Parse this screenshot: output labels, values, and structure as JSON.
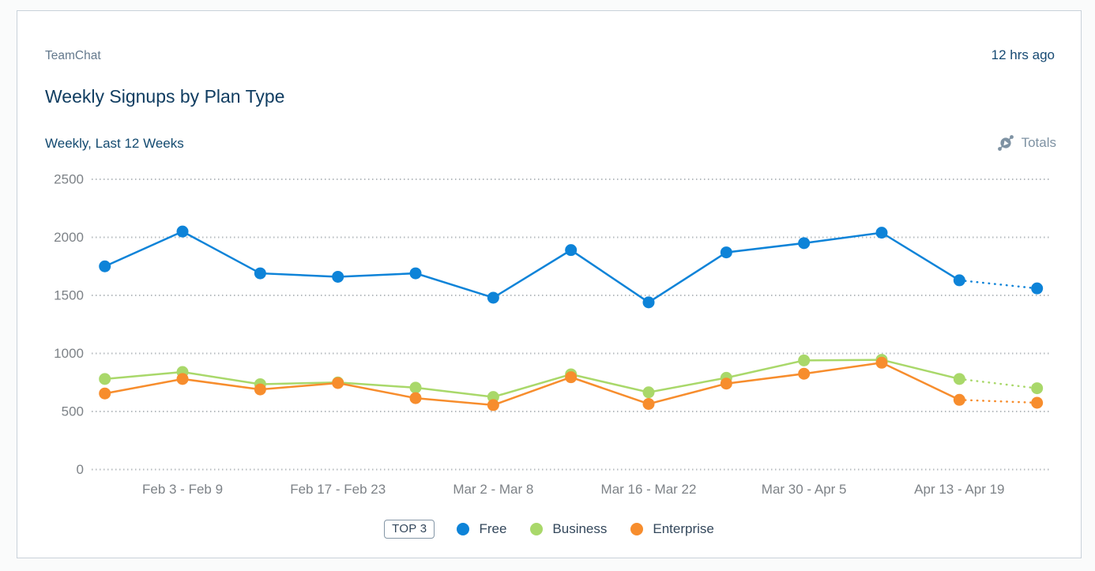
{
  "card": {
    "app_name": "TeamChat",
    "timestamp": "12 hrs ago",
    "title": "Weekly Signups by Plan Type",
    "subtitle": "Weekly, Last 12 Weeks",
    "totals_label": "Totals"
  },
  "chart_data": {
    "type": "line",
    "title": "Weekly Signups by Plan Type",
    "subtitle": "Weekly, Last 12 Weeks",
    "num_points": 13,
    "x_labels_visible": [
      "Feb 3 - Feb 9",
      "Feb 17 - Feb 23",
      "Mar 2 - Mar 8",
      "Mar 16 - Mar 22",
      "Mar 30 - Apr 5",
      "Apr 13 - Apr 19"
    ],
    "x_label_indices": [
      1,
      3,
      5,
      7,
      9,
      11
    ],
    "y_ticks": [
      0,
      500,
      1000,
      1500,
      2000,
      2500
    ],
    "ylim": [
      0,
      2500
    ],
    "grid": "dotted-horizontal",
    "last_segment_style": "dotted",
    "series": [
      {
        "name": "Free",
        "color": "#0d83d8",
        "values": [
          1750,
          2050,
          1690,
          1660,
          1690,
          1480,
          1890,
          1440,
          1870,
          1950,
          2040,
          1630,
          1560
        ]
      },
      {
        "name": "Business",
        "color": "#a9d86a",
        "values": [
          780,
          840,
          735,
          750,
          705,
          625,
          820,
          665,
          790,
          940,
          945,
          780,
          700
        ]
      },
      {
        "name": "Enterprise",
        "color": "#f78d2d",
        "values": [
          655,
          780,
          690,
          745,
          615,
          555,
          795,
          565,
          740,
          825,
          920,
          600,
          575
        ]
      }
    ],
    "legend": {
      "position": "bottom",
      "badge": "TOP 3",
      "entries": [
        "Free",
        "Business",
        "Enterprise"
      ]
    },
    "colors": {
      "grid": "#b6bbbf",
      "axis_label": "#7d8287"
    }
  }
}
